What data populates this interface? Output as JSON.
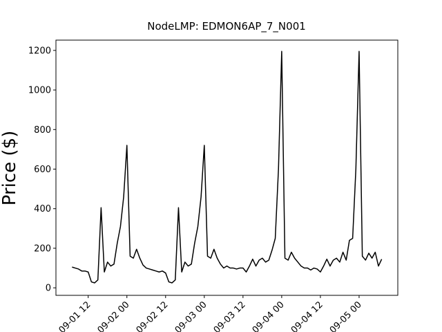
{
  "chart_data": {
    "type": "line",
    "title": "NodeLMP: EDMON6AP_7_N001",
    "ylabel": "Price ($)",
    "x": [
      "09-01 07",
      "09-01 08",
      "09-01 09",
      "09-01 10",
      "09-01 11",
      "09-01 12",
      "09-01 13",
      "09-01 14",
      "09-01 15",
      "09-01 16",
      "09-01 17",
      "09-01 18",
      "09-01 19",
      "09-01 20",
      "09-01 21",
      "09-01 22",
      "09-01 23",
      "09-02 00",
      "09-02 01",
      "09-02 02",
      "09-02 03",
      "09-02 04",
      "09-02 05",
      "09-02 06",
      "09-02 07",
      "09-02 08",
      "09-02 09",
      "09-02 10",
      "09-02 11",
      "09-02 12",
      "09-02 13",
      "09-02 14",
      "09-02 15",
      "09-02 16",
      "09-02 17",
      "09-02 18",
      "09-02 19",
      "09-02 20",
      "09-02 21",
      "09-02 22",
      "09-02 23",
      "09-03 00",
      "09-03 01",
      "09-03 02",
      "09-03 03",
      "09-03 04",
      "09-03 05",
      "09-03 06",
      "09-03 07",
      "09-03 08",
      "09-03 09",
      "09-03 10",
      "09-03 11",
      "09-03 12",
      "09-03 13",
      "09-03 14",
      "09-03 15",
      "09-03 16",
      "09-03 17",
      "09-03 18",
      "09-03 19",
      "09-03 20",
      "09-03 21",
      "09-03 22",
      "09-03 23",
      "09-04 00",
      "09-04 01",
      "09-04 02",
      "09-04 03",
      "09-04 04",
      "09-04 05",
      "09-04 06",
      "09-04 07",
      "09-04 08",
      "09-04 09",
      "09-04 10",
      "09-04 11",
      "09-04 12",
      "09-04 13",
      "09-04 14",
      "09-04 15",
      "09-04 16",
      "09-04 17",
      "09-04 18",
      "09-04 19",
      "09-04 20",
      "09-04 21",
      "09-04 22",
      "09-04 23",
      "09-05 00",
      "09-05 01",
      "09-05 02",
      "09-05 03",
      "09-05 04",
      "09-05 05",
      "09-05 06",
      "09-05 07"
    ],
    "series": [
      {
        "color": "#000000",
        "values": [
          105,
          100,
          95,
          85,
          85,
          80,
          30,
          25,
          40,
          405,
          80,
          130,
          110,
          120,
          225,
          310,
          460,
          720,
          160,
          150,
          195,
          150,
          115,
          100,
          95,
          90,
          85,
          80,
          85,
          75,
          30,
          25,
          40,
          405,
          80,
          130,
          110,
          120,
          225,
          310,
          460,
          720,
          160,
          150,
          195,
          150,
          120,
          100,
          110,
          100,
          100,
          95,
          100,
          100,
          80,
          110,
          145,
          110,
          140,
          150,
          130,
          140,
          190,
          250,
          600,
          1195,
          150,
          140,
          180,
          150,
          130,
          110,
          100,
          100,
          90,
          100,
          95,
          80,
          110,
          145,
          110,
          140,
          150,
          130,
          180,
          140,
          240,
          250,
          600,
          1195,
          160,
          140,
          175,
          150,
          180,
          110,
          145
        ]
      }
    ],
    "xlim": [
      "09-01 02",
      "09-05 12"
    ],
    "xticks": [
      "09-01 12",
      "09-02 00",
      "09-02 12",
      "09-03 00",
      "09-03 12",
      "09-04 00",
      "09-04 12",
      "09-05 00"
    ],
    "ylim": [
      -38,
      1252
    ],
    "yticks": [
      0,
      200,
      400,
      600,
      800,
      1000,
      1200
    ]
  }
}
